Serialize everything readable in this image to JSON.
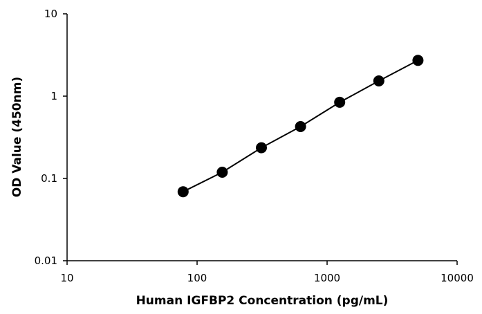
{
  "chart_data": {
    "type": "line",
    "title": "",
    "xlabel": "Human IGFBP2 Concentration (pg/mL)",
    "ylabel": "OD Value (450nm)",
    "xscale": "log",
    "yscale": "log",
    "xlim": [
      10,
      10000
    ],
    "ylim": [
      0.01,
      10
    ],
    "x_ticks": [
      "10",
      "100",
      "1000",
      "10000"
    ],
    "y_ticks": [
      "0.01",
      "0.1",
      "1",
      "10"
    ],
    "grid": false,
    "legend": "none",
    "series": [
      {
        "x": [
          78.13,
          156.25,
          312.5,
          625,
          1250,
          2500,
          5000
        ],
        "y": [
          0.069,
          0.119,
          0.236,
          0.427,
          0.842,
          1.532,
          2.718
        ]
      }
    ],
    "colors": {
      "line": "#000000",
      "marker": "#000000",
      "axis": "#000000"
    }
  }
}
